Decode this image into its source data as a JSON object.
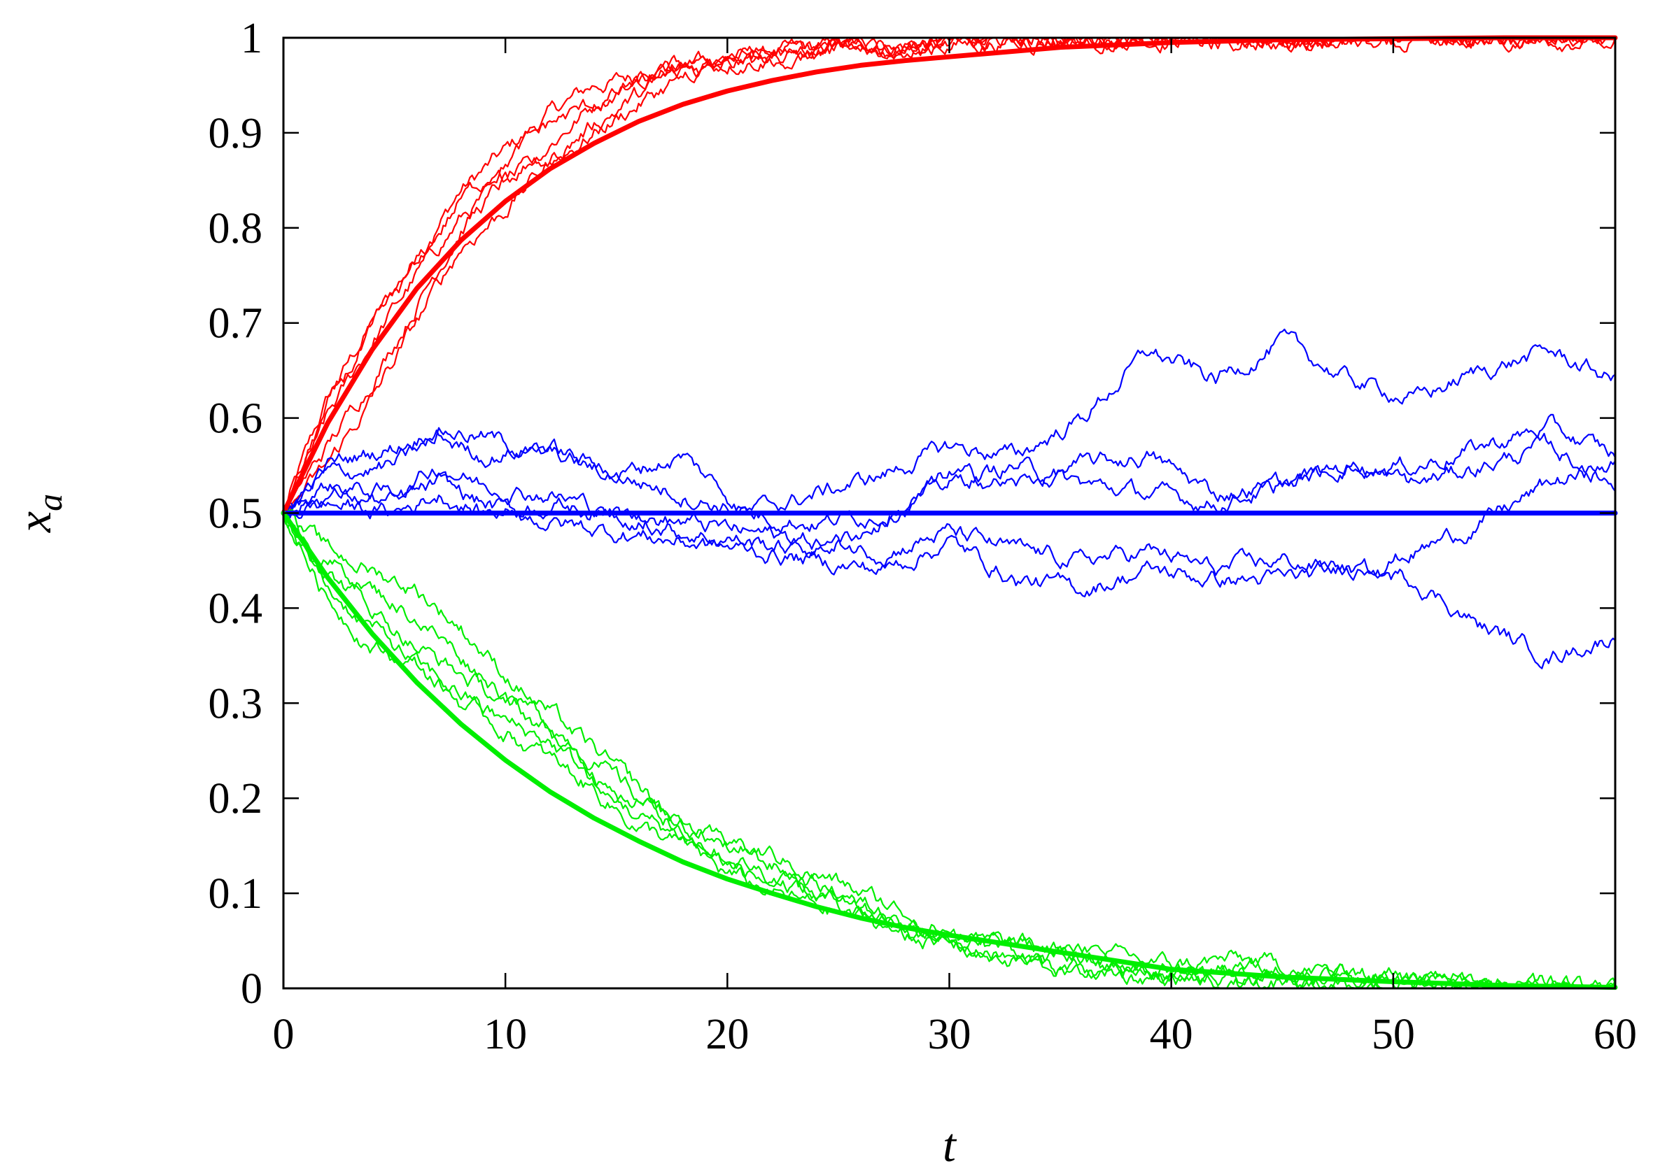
{
  "chart_data": {
    "type": "line",
    "title": "",
    "xlabel": "t",
    "ylabel_main": "x",
    "ylabel_sub": "a",
    "xlim": [
      0,
      60
    ],
    "ylim": [
      0,
      1
    ],
    "x_ticks": [
      0,
      10,
      20,
      30,
      40,
      50,
      60
    ],
    "x_tick_labels": [
      "0",
      "10",
      "20",
      "30",
      "40",
      "50",
      "60"
    ],
    "y_ticks": [
      0,
      0.1,
      0.2,
      0.3,
      0.4,
      0.5,
      0.6,
      0.7,
      0.8,
      0.9,
      1
    ],
    "y_tick_labels": [
      "0",
      "0.1",
      "0.2",
      "0.3",
      "0.4",
      "0.5",
      "0.6",
      "0.7",
      "0.8",
      "0.9",
      "1"
    ],
    "grid": false,
    "legend": "none",
    "groups": [
      {
        "color": "#ff0000",
        "mean": {
          "x": [
            0,
            2,
            4,
            6,
            8,
            10,
            12,
            14,
            16,
            18,
            20,
            22,
            24,
            26,
            28,
            30,
            35,
            40,
            45,
            50,
            55,
            60
          ],
          "y": [
            0.5,
            0.595,
            0.672,
            0.736,
            0.787,
            0.828,
            0.862,
            0.889,
            0.912,
            0.93,
            0.944,
            0.955,
            0.964,
            0.971,
            0.976,
            0.98,
            0.99,
            0.995,
            0.998,
            0.999,
            1.0,
            1.0
          ]
        },
        "runs": [
          {
            "x": [
              0,
              2,
              4,
              6,
              8,
              10,
              12,
              14,
              16,
              18,
              20,
              25,
              30,
              35,
              40,
              45,
              50,
              55,
              60
            ],
            "y": [
              0.5,
              0.62,
              0.7,
              0.77,
              0.84,
              0.88,
              0.92,
              0.95,
              0.96,
              0.97,
              0.98,
              0.99,
              0.997,
              1.0,
              0.999,
              1.0,
              1.0,
              1.0,
              1.0
            ]
          },
          {
            "x": [
              0,
              2,
              4,
              6,
              8,
              10,
              12,
              14,
              16,
              18,
              20,
              25,
              30,
              35,
              40,
              45,
              50,
              55,
              60
            ],
            "y": [
              0.5,
              0.6,
              0.68,
              0.75,
              0.81,
              0.85,
              0.89,
              0.93,
              0.96,
              0.97,
              0.98,
              0.99,
              0.995,
              1.0,
              0.995,
              1.0,
              1.0,
              1.0,
              1.0
            ]
          },
          {
            "x": [
              0,
              2,
              4,
              6,
              8,
              10,
              12,
              14,
              16,
              18,
              20,
              25,
              30,
              35,
              40,
              45,
              50,
              55,
              60
            ],
            "y": [
              0.5,
              0.57,
              0.64,
              0.72,
              0.8,
              0.85,
              0.87,
              0.9,
              0.93,
              0.96,
              0.97,
              0.985,
              0.993,
              0.998,
              1.0,
              1.0,
              1.0,
              1.0,
              1.0
            ]
          },
          {
            "x": [
              0,
              2,
              4,
              6,
              8,
              10,
              12,
              14,
              16,
              18,
              20,
              25,
              30,
              35,
              40,
              45,
              50,
              55,
              60
            ],
            "y": [
              0.5,
              0.55,
              0.62,
              0.7,
              0.78,
              0.82,
              0.87,
              0.91,
              0.94,
              0.965,
              0.975,
              0.985,
              0.992,
              0.998,
              0.999,
              1.0,
              1.0,
              1.0,
              1.0
            ]
          },
          {
            "x": [
              0,
              2,
              4,
              6,
              8,
              10,
              12,
              14,
              16,
              18,
              20,
              25,
              30,
              35,
              40,
              45,
              50,
              55,
              60
            ],
            "y": [
              0.5,
              0.61,
              0.69,
              0.76,
              0.83,
              0.87,
              0.91,
              0.93,
              0.95,
              0.97,
              0.98,
              0.99,
              0.996,
              1.0,
              1.0,
              1.0,
              1.0,
              1.0,
              1.0
            ]
          }
        ]
      },
      {
        "color": "#0000ff",
        "mean": {
          "x": [
            0,
            60
          ],
          "y": [
            0.5,
            0.5
          ]
        },
        "runs": [
          {
            "x": [
              0,
              2,
              5,
              7,
              9,
              12,
              15,
              18,
              21,
              24,
              27,
              30,
              33,
              36,
              39,
              42,
              45,
              48,
              51,
              54,
              57,
              60
            ],
            "y": [
              0.5,
              0.55,
              0.57,
              0.59,
              0.58,
              0.56,
              0.54,
              0.52,
              0.5,
              0.52,
              0.54,
              0.57,
              0.56,
              0.6,
              0.67,
              0.64,
              0.68,
              0.64,
              0.62,
              0.65,
              0.67,
              0.64
            ]
          },
          {
            "x": [
              0,
              2,
              5,
              7,
              9,
              12,
              15,
              18,
              21,
              24,
              27,
              30,
              33,
              36,
              39,
              42,
              45,
              48,
              51,
              54,
              57,
              60
            ],
            "y": [
              0.5,
              0.54,
              0.55,
              0.58,
              0.56,
              0.57,
              0.54,
              0.56,
              0.5,
              0.49,
              0.5,
              0.53,
              0.55,
              0.53,
              0.52,
              0.51,
              0.53,
              0.55,
              0.55,
              0.57,
              0.59,
              0.56
            ]
          },
          {
            "x": [
              0,
              2,
              5,
              7,
              9,
              12,
              15,
              18,
              21,
              24,
              27,
              30,
              33,
              36,
              39,
              42,
              45,
              48,
              51,
              54,
              57,
              60
            ],
            "y": [
              0.5,
              0.53,
              0.52,
              0.55,
              0.53,
              0.52,
              0.5,
              0.48,
              0.47,
              0.46,
              0.49,
              0.54,
              0.53,
              0.55,
              0.56,
              0.52,
              0.53,
              0.55,
              0.53,
              0.55,
              0.57,
              0.53
            ]
          },
          {
            "x": [
              0,
              2,
              5,
              7,
              9,
              12,
              15,
              18,
              21,
              24,
              27,
              30,
              33,
              36,
              39,
              42,
              45,
              48,
              51,
              54,
              57,
              60
            ],
            "y": [
              0.5,
              0.52,
              0.51,
              0.53,
              0.51,
              0.49,
              0.48,
              0.47,
              0.46,
              0.45,
              0.44,
              0.47,
              0.43,
              0.42,
              0.44,
              0.43,
              0.43,
              0.44,
              0.46,
              0.49,
              0.53,
              0.55
            ]
          },
          {
            "x": [
              0,
              2,
              5,
              7,
              9,
              12,
              15,
              18,
              21,
              24,
              27,
              30,
              33,
              36,
              39,
              42,
              45,
              48,
              51,
              54,
              57,
              60
            ],
            "y": [
              0.5,
              0.51,
              0.5,
              0.52,
              0.5,
              0.51,
              0.5,
              0.49,
              0.48,
              0.47,
              0.46,
              0.48,
              0.46,
              0.45,
              0.46,
              0.44,
              0.45,
              0.44,
              0.43,
              0.38,
              0.35,
              0.37
            ]
          }
        ]
      },
      {
        "color": "#00ee00",
        "mean": {
          "x": [
            0,
            2,
            4,
            6,
            8,
            10,
            12,
            14,
            16,
            18,
            20,
            22,
            24,
            26,
            28,
            30,
            35,
            40,
            45,
            50,
            55,
            60
          ],
          "y": [
            0.5,
            0.432,
            0.373,
            0.322,
            0.278,
            0.24,
            0.207,
            0.179,
            0.155,
            0.133,
            0.115,
            0.1,
            0.086,
            0.074,
            0.064,
            0.056,
            0.038,
            0.02,
            0.012,
            0.007,
            0.003,
            0.001
          ]
        },
        "runs": [
          {
            "x": [
              0,
              2,
              4,
              6,
              8,
              10,
              12,
              14,
              16,
              18,
              20,
              22,
              25,
              28,
              31,
              35,
              40,
              43,
              46,
              50,
              55,
              60
            ],
            "y": [
              0.5,
              0.46,
              0.44,
              0.42,
              0.38,
              0.33,
              0.29,
              0.25,
              0.21,
              0.17,
              0.15,
              0.13,
              0.1,
              0.07,
              0.05,
              0.04,
              0.025,
              0.03,
              0.02,
              0.01,
              0.01,
              0.0
            ]
          },
          {
            "x": [
              0,
              2,
              4,
              6,
              8,
              10,
              12,
              14,
              16,
              18,
              20,
              22,
              25,
              28,
              31,
              35,
              40,
              43,
              46,
              50,
              55,
              60
            ],
            "y": [
              0.5,
              0.44,
              0.4,
              0.36,
              0.33,
              0.3,
              0.27,
              0.22,
              0.2,
              0.17,
              0.14,
              0.12,
              0.09,
              0.07,
              0.05,
              0.04,
              0.02,
              0.015,
              0.01,
              0.006,
              0.003,
              0.001
            ]
          },
          {
            "x": [
              0,
              2,
              4,
              6,
              8,
              10,
              12,
              14,
              16,
              18,
              20,
              22,
              25,
              28,
              31,
              35,
              40,
              43,
              46,
              50,
              55,
              60
            ],
            "y": [
              0.5,
              0.42,
              0.38,
              0.34,
              0.31,
              0.28,
              0.26,
              0.22,
              0.18,
              0.16,
              0.13,
              0.11,
              0.09,
              0.06,
              0.04,
              0.02,
              0.01,
              0.005,
              0.003,
              0.002,
              0.001,
              0.0
            ]
          },
          {
            "x": [
              0,
              2,
              4,
              6,
              8,
              10,
              12,
              14,
              16,
              18,
              20,
              22,
              25,
              28,
              31,
              35,
              40,
              43,
              46,
              50,
              55,
              60
            ],
            "y": [
              0.5,
              0.41,
              0.36,
              0.34,
              0.3,
              0.27,
              0.24,
              0.21,
              0.17,
              0.15,
              0.12,
              0.1,
              0.08,
              0.06,
              0.04,
              0.02,
              0.01,
              0.004,
              0.002,
              0.001,
              0.0,
              0.0
            ]
          },
          {
            "x": [
              0,
              2,
              4,
              6,
              8,
              10,
              12,
              14,
              16,
              18,
              20,
              22,
              25,
              28,
              31,
              35,
              40,
              43,
              46,
              50,
              55,
              60
            ],
            "y": [
              0.5,
              0.45,
              0.42,
              0.39,
              0.35,
              0.31,
              0.28,
              0.24,
              0.2,
              0.17,
              0.15,
              0.14,
              0.11,
              0.08,
              0.05,
              0.03,
              0.015,
              0.02,
              0.015,
              0.01,
              0.005,
              0.002
            ]
          }
        ]
      }
    ]
  }
}
